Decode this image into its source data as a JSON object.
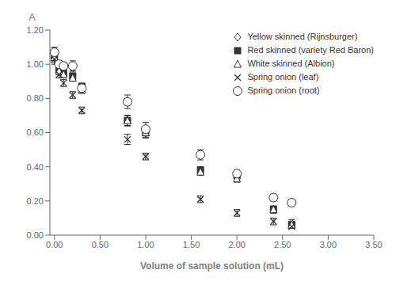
{
  "chart_data": {
    "type": "scatter",
    "title": "",
    "xlabel": "Volume of sample solution (mL)",
    "ylabel": "A",
    "xlim": [
      -0.05,
      3.5
    ],
    "ylim": [
      0.0,
      1.2
    ],
    "xticks": [
      {
        "value": 0.0,
        "label": "0.00"
      },
      {
        "value": 0.5,
        "label": "0.50"
      },
      {
        "value": 1.0,
        "label": "1.00"
      },
      {
        "value": 1.5,
        "label": "1.50"
      },
      {
        "value": 2.0,
        "label": "2.00"
      },
      {
        "value": 2.5,
        "label": "2.50"
      },
      {
        "value": 3.0,
        "label": "3.00"
      },
      {
        "value": 3.5,
        "label": "3.50"
      }
    ],
    "yticks": [
      {
        "value": 0.0,
        "label": "0.00"
      },
      {
        "value": 0.2,
        "label": "0.20"
      },
      {
        "value": 0.4,
        "label": "0.40"
      },
      {
        "value": 0.6,
        "label": "0.60"
      },
      {
        "value": 0.8,
        "label": "0.80"
      },
      {
        "value": 1.0,
        "label": "1.00"
      },
      {
        "value": 1.2,
        "label": "1.20"
      }
    ],
    "grid": false,
    "legend": "upper right",
    "x": [
      0.0,
      0.05,
      0.1,
      0.2,
      0.3,
      0.8,
      1.0,
      1.6,
      2.0,
      2.4,
      2.6
    ],
    "series": [
      {
        "name": "Yellow skinned (Rijnsburger)",
        "marker": "diamond_open",
        "color": "#333333",
        "values": [
          1.07,
          1.0,
          0.99,
          0.98,
          0.86,
          0.67,
          0.6,
          0.38,
          0.35,
          0.15,
          0.07
        ],
        "yerr": [
          0.03,
          0.02,
          0.02,
          0.02,
          0.02,
          0.03,
          0.03,
          0.02,
          0.02,
          0.02,
          0.02
        ]
      },
      {
        "name": "Red skinned (variety Red Baron)",
        "marker": "square",
        "color": "#333333",
        "values": [
          1.05,
          0.97,
          0.95,
          0.93,
          0.87,
          0.67,
          0.6,
          0.38,
          0.35,
          0.15,
          0.06
        ],
        "yerr": [
          0.03,
          0.02,
          0.02,
          0.02,
          0.02,
          0.03,
          0.03,
          0.02,
          0.02,
          0.02,
          0.02
        ]
      },
      {
        "name": "White skinned (Albion)",
        "marker": "triangle_open",
        "color": "#333333",
        "values": [
          1.04,
          0.96,
          0.94,
          0.92,
          0.85,
          0.67,
          0.6,
          0.37,
          0.33,
          0.15,
          0.06
        ],
        "yerr": [
          0.03,
          0.02,
          0.02,
          0.02,
          0.02,
          0.03,
          0.03,
          0.02,
          0.02,
          0.02,
          0.02
        ]
      },
      {
        "name": "Spring onion (leaf)",
        "marker": "x",
        "color": "#333333",
        "values": [
          1.03,
          0.94,
          0.89,
          0.82,
          0.73,
          0.56,
          0.46,
          0.21,
          0.13,
          0.08,
          0.05
        ],
        "yerr": [
          0.03,
          0.02,
          0.02,
          0.02,
          0.02,
          0.03,
          0.02,
          0.02,
          0.02,
          0.02,
          0.01
        ]
      },
      {
        "name": "Spring onion (root)",
        "marker": "circle_open",
        "color": "#333333",
        "values": [
          1.07,
          1.0,
          0.99,
          0.99,
          0.86,
          0.78,
          0.62,
          0.47,
          0.36,
          0.22,
          0.19
        ],
        "yerr": [
          0.03,
          0.02,
          0.02,
          0.03,
          0.02,
          0.04,
          0.04,
          0.03,
          0.02,
          0.02,
          0.02
        ]
      }
    ]
  }
}
